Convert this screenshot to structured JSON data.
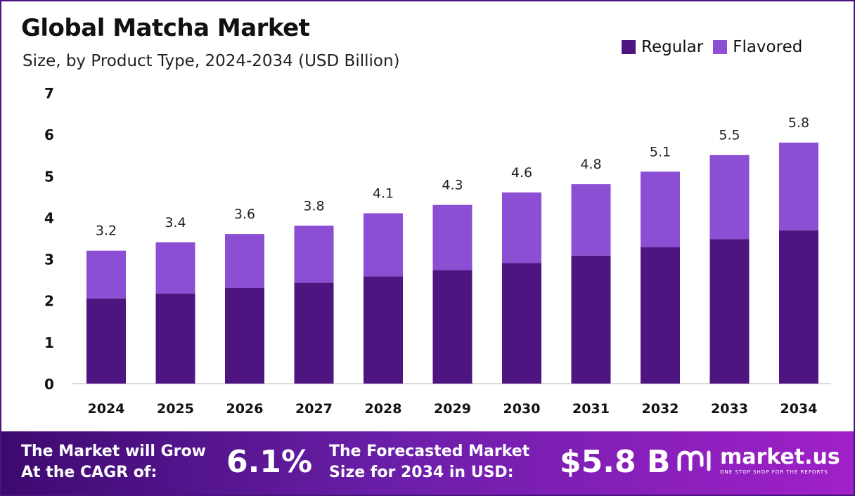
{
  "header": {
    "title": "Global Matcha Market",
    "subtitle": "Size, by Product Type, 2024-2034 (USD Billion)"
  },
  "legend": [
    {
      "label": "Regular",
      "color": "#4e1580"
    },
    {
      "label": "Flavored",
      "color": "#8c4fd3"
    }
  ],
  "chart_data": {
    "type": "bar",
    "stacked": true,
    "categories": [
      "2024",
      "2025",
      "2026",
      "2027",
      "2028",
      "2029",
      "2030",
      "2031",
      "2032",
      "2033",
      "2034"
    ],
    "series": [
      {
        "name": "Regular",
        "values": [
          2.05,
          2.17,
          2.3,
          2.43,
          2.58,
          2.73,
          2.9,
          3.08,
          3.28,
          3.48,
          3.69
        ]
      },
      {
        "name": "Flavored",
        "values": [
          1.15,
          1.23,
          1.3,
          1.37,
          1.52,
          1.57,
          1.7,
          1.72,
          1.82,
          2.02,
          2.11
        ]
      }
    ],
    "totals_labels": [
      "3.2",
      "3.4",
      "3.6",
      "3.8",
      "4.1",
      "4.3",
      "4.6",
      "4.8",
      "5.1",
      "5.5",
      "5.8"
    ],
    "totals": [
      3.2,
      3.4,
      3.6,
      3.8,
      4.1,
      4.3,
      4.6,
      4.8,
      5.1,
      5.5,
      5.8
    ],
    "ylim": [
      0,
      7
    ],
    "yticks": [
      0,
      1,
      2,
      3,
      4,
      5,
      6,
      7
    ],
    "grid": false,
    "legend_position": "top-right"
  },
  "footer": {
    "cagr_line1": "The Market will Grow",
    "cagr_line2": "At the CAGR of:",
    "cagr_value": "6.1%",
    "forecast_line1": "The Forecasted Market",
    "forecast_line2": "Size for 2034 in USD:",
    "forecast_value": "$5.8 B",
    "brand_name": "market.us",
    "brand_tagline": "ONE STOP SHOP FOR THE REPORTS"
  }
}
